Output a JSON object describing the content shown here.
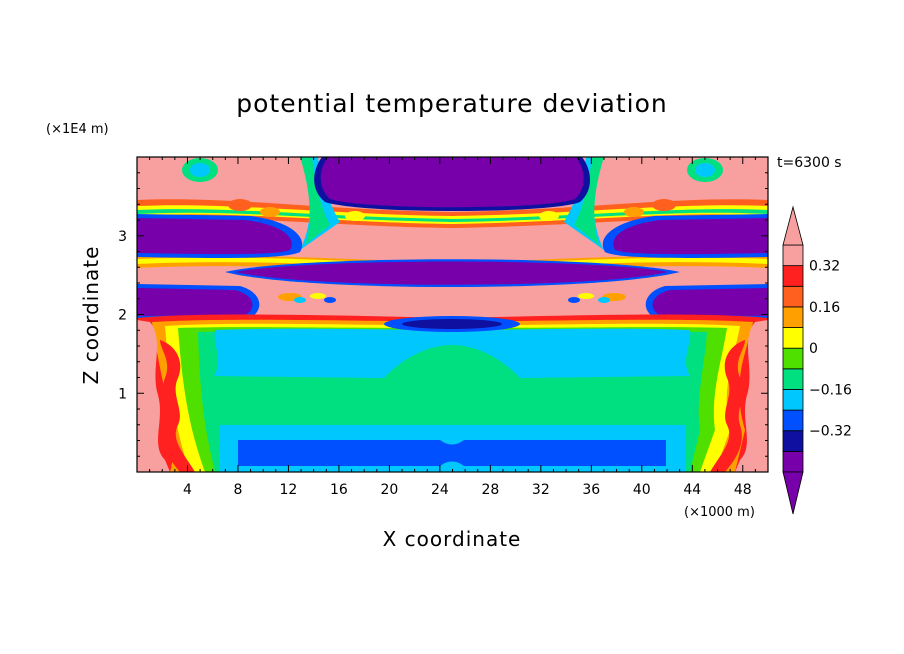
{
  "chart_data": {
    "type": "heatmap",
    "title": "potential temperature deviation",
    "xlabel": "X coordinate",
    "ylabel": "Z coordinate",
    "x_unit": "(×1000 m)",
    "y_unit": "(×1E4 m)",
    "time_label": "t=6300 s",
    "xlim": [
      0,
      50
    ],
    "ylim": [
      0,
      4
    ],
    "x_ticks": [
      4,
      8,
      12,
      16,
      20,
      24,
      28,
      32,
      36,
      40,
      44,
      48
    ],
    "y_ticks": [
      1,
      2,
      3
    ],
    "colorbar": {
      "levels": [
        -0.48,
        -0.4,
        -0.32,
        -0.24,
        -0.16,
        -0.08,
        0,
        0.08,
        0.16,
        0.24,
        0.32,
        0.4
      ],
      "tick_labels": [
        {
          "value": 0.32,
          "text": "0.32"
        },
        {
          "value": 0.16,
          "text": "0.16"
        },
        {
          "value": 0,
          "text": "0"
        },
        {
          "value": -0.16,
          "text": "−0.16"
        },
        {
          "value": -0.32,
          "text": "−0.32"
        }
      ],
      "colors": [
        "#7700aa",
        "#1010a0",
        "#0050ff",
        "#00c8ff",
        "#00e080",
        "#50e000",
        "#ffff00",
        "#ffa000",
        "#ff6020",
        "#ff2020",
        "#f8a0a0"
      ],
      "extend": "both"
    },
    "regions": [
      {
        "name": "upper-mid-negative-cell",
        "value": -0.45,
        "x": [
          15,
          35
        ],
        "z": [
          3.35,
          3.95
        ]
      },
      {
        "name": "left-upper-negative-band",
        "value": -0.45,
        "x": [
          0,
          12.5
        ],
        "z": [
          2.8,
          3.2
        ]
      },
      {
        "name": "right-upper-negative-band",
        "value": -0.45,
        "x": [
          37.5,
          50
        ],
        "z": [
          2.8,
          3.2
        ]
      },
      {
        "name": "central-negative-lens",
        "value": -0.45,
        "x": [
          10,
          40
        ],
        "z": [
          2.45,
          2.65
        ]
      },
      {
        "name": "left-lower-negative-band",
        "value": -0.45,
        "x": [
          0,
          11.5
        ],
        "z": [
          2.0,
          2.35
        ]
      },
      {
        "name": "right-lower-negative-band",
        "value": -0.45,
        "x": [
          38.5,
          50
        ],
        "z": [
          2.0,
          2.35
        ]
      },
      {
        "name": "central-small-negative-cell",
        "value": -0.4,
        "x": [
          20,
          30
        ],
        "z": [
          1.82,
          1.95
        ]
      },
      {
        "name": "cyan-layer",
        "value": -0.1,
        "x": [
          6,
          44
        ],
        "z": [
          1.2,
          1.85
        ]
      },
      {
        "name": "green-core",
        "value": -0.05,
        "x": [
          5.5,
          44.5
        ],
        "z": [
          0.55,
          1.2
        ]
      },
      {
        "name": "near-surface-blue-band",
        "value": -0.2,
        "x": [
          8,
          42
        ],
        "z": [
          0.1,
          0.45
        ]
      },
      {
        "name": "left-warm-edge",
        "value": 0.4,
        "x": [
          0,
          4
        ],
        "z": [
          0,
          1.9
        ]
      },
      {
        "name": "right-warm-edge",
        "value": 0.4,
        "x": [
          46,
          50
        ],
        "z": [
          0,
          1.9
        ]
      }
    ],
    "grid": false,
    "legend": "colorbar-right"
  }
}
